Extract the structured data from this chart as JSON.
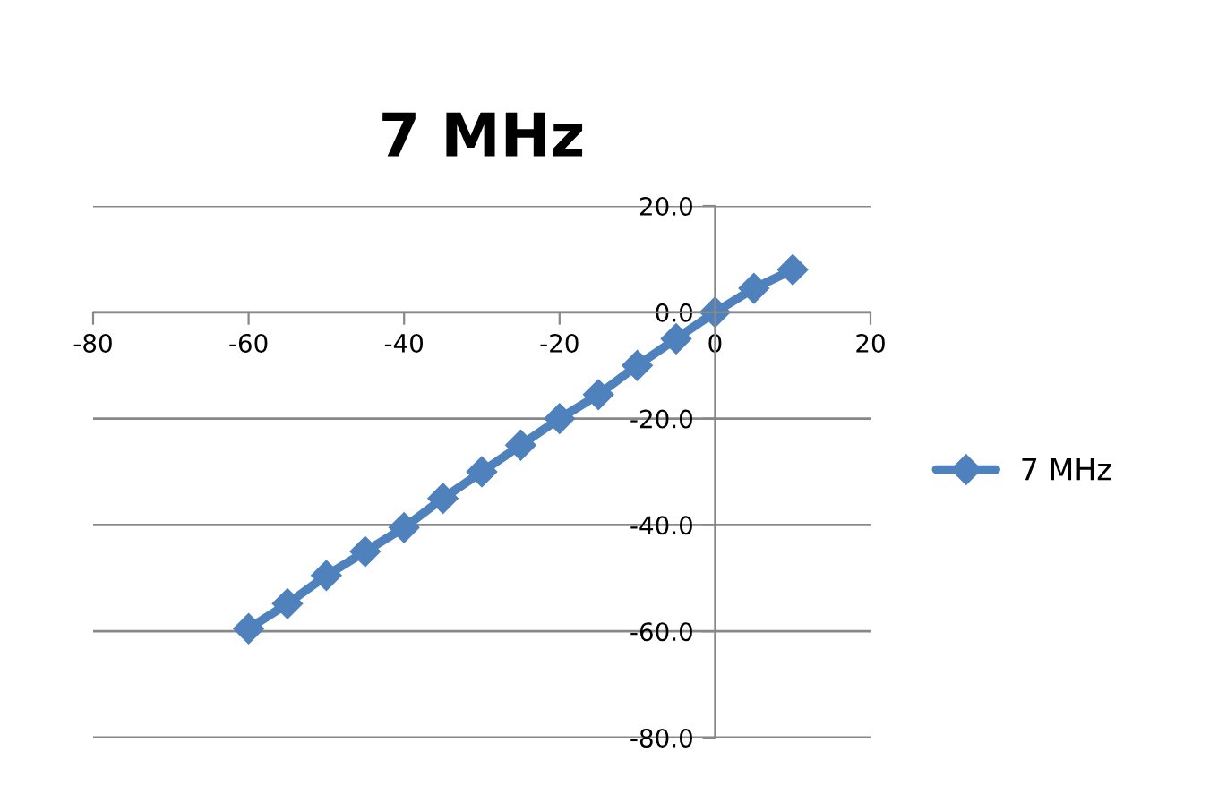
{
  "chart_data": {
    "type": "line",
    "title": "7 MHz",
    "x": [
      -60,
      -55,
      -50,
      -45,
      -40,
      -35,
      -30,
      -25,
      -20,
      -15,
      -10,
      -5,
      0,
      5,
      10
    ],
    "series": [
      {
        "name": "7 MHz",
        "color": "#4f81bd",
        "values": [
          -59.5,
          -54.8,
          -49.5,
          -45,
          -40.5,
          -35,
          -30,
          -25,
          -20,
          -15.5,
          -10,
          -5,
          0,
          4.5,
          8
        ]
      }
    ],
    "xlim": [
      -80,
      20
    ],
    "xticks": [
      -80,
      -60,
      -40,
      -20,
      0,
      20
    ],
    "ylim": [
      -80,
      20
    ],
    "yticks": [
      {
        "value": -80,
        "label": "-80.0"
      },
      {
        "value": -60,
        "label": "-60.0"
      },
      {
        "value": -40,
        "label": "-40.0"
      },
      {
        "value": -20,
        "label": "-20.0"
      },
      {
        "value": 0,
        "label": "0.0"
      },
      {
        "value": 20,
        "label": "20.0"
      }
    ],
    "grid": "y",
    "legend": "right",
    "marker": "diamond",
    "line_style": "solid"
  }
}
